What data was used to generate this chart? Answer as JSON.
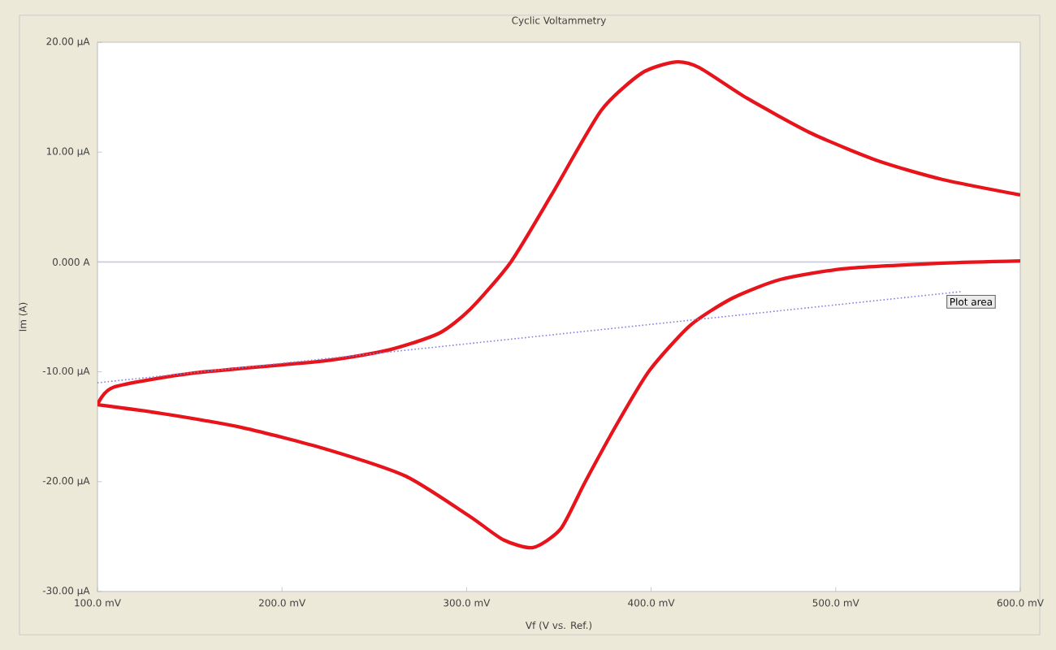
{
  "chart_data": {
    "type": "line",
    "title": "Cyclic Voltammetry",
    "xlabel": "Vf (V vs. Ref.)",
    "ylabel": "Im (A)",
    "xlim": [
      100,
      600
    ],
    "ylim": [
      -30,
      20
    ],
    "xticks": [
      {
        "value": 100,
        "label": "100.0 mV"
      },
      {
        "value": 200,
        "label": "200.0 mV"
      },
      {
        "value": 300,
        "label": "300.0 mV"
      },
      {
        "value": 400,
        "label": "400.0 mV"
      },
      {
        "value": 500,
        "label": "500.0 mV"
      },
      {
        "value": 600,
        "label": "600.0 mV"
      }
    ],
    "yticks": [
      {
        "value": -30,
        "label": "-30.00 µA"
      },
      {
        "value": -20,
        "label": "-20.00 µA"
      },
      {
        "value": -10,
        "label": "-10.00 µA"
      },
      {
        "value": 0,
        "label": "0.000 A"
      },
      {
        "value": 10,
        "label": "10.00 µA"
      },
      {
        "value": 20,
        "label": "20.00 µA"
      }
    ],
    "grid": false,
    "legend": false,
    "ref_lines": [
      {
        "axis": "y",
        "value": 0,
        "color": "#c8c8d8"
      }
    ],
    "annotations": [
      {
        "text": "Plot area",
        "x": 560,
        "y": -3
      }
    ],
    "series": [
      {
        "color": "#e8141c",
        "line_style": "solid",
        "x": [
          100,
          108.8,
          152.8,
          223,
          258,
          285,
          302,
          324,
          346,
          373,
          395,
          413,
          426,
          452,
          487,
          523,
          558,
          600
        ],
        "values": [
          -13.0,
          -11.4,
          -10.1,
          -9.0,
          -8.0,
          -6.5,
          -4.3,
          0.0,
          6.1,
          13.8,
          17.2,
          18.2,
          17.7,
          14.9,
          11.7,
          9.2,
          7.5,
          6.1
        ]
      },
      {
        "color": "#e8141c",
        "line_style": "solid",
        "x": [
          100,
          135,
          179,
          223,
          267,
          302,
          320,
          336,
          351,
          364,
          382,
          399,
          421,
          444,
          470,
          505,
          558,
          600
        ],
        "values": [
          -13.0,
          -13.8,
          -15.1,
          -17.0,
          -19.5,
          -23.2,
          -25.3,
          -26.0,
          -24.3,
          -20.1,
          -14.6,
          -9.9,
          -5.8,
          -3.3,
          -1.6,
          -0.6,
          -0.1,
          0.1
        ]
      },
      {
        "type": "line",
        "color": "#8080e0",
        "line_style": "dotted",
        "x": [
          100,
          568
        ],
        "values": [
          -11.0,
          -2.7
        ]
      }
    ]
  }
}
